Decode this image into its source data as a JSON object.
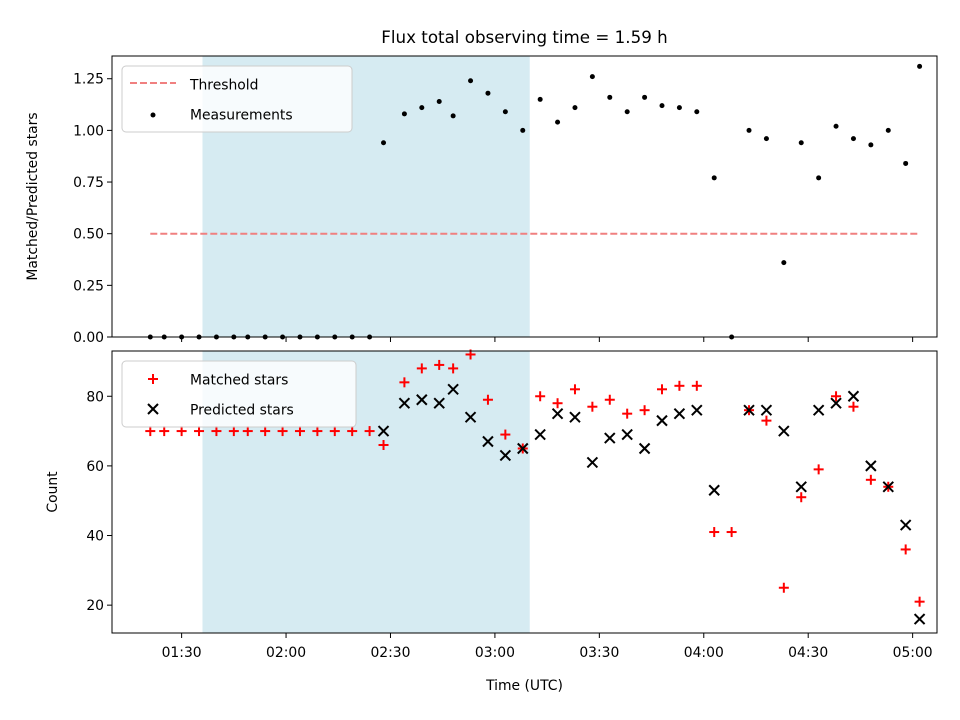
{
  "chart_data": [
    {
      "type": "scatter",
      "title": "Flux total observing time = 1.59 h",
      "xlabel": "",
      "ylabel": "Matched/Predicted stars",
      "ylim": [
        0,
        1.36
      ],
      "yticks": [
        0.0,
        0.25,
        0.5,
        0.75,
        1.0,
        1.25
      ],
      "ytick_labels": [
        "0.00",
        "0.25",
        "0.50",
        "0.75",
        "1.00",
        "1.25"
      ],
      "shaded_span_minutes": [
        96,
        190
      ],
      "legend": [
        "Threshold",
        "Measurements"
      ],
      "legend_position": "top-left",
      "threshold": {
        "name": "Threshold",
        "value": 0.5,
        "x_range": [
          81,
          302
        ],
        "color": "#f08080",
        "style": "dashed"
      },
      "series": [
        {
          "name": "Measurements",
          "color": "#000000",
          "x_minutes": [
            81,
            85,
            90,
            95,
            100,
            105,
            109,
            114,
            119,
            124,
            129,
            134,
            139,
            144,
            148,
            154,
            159,
            164,
            168,
            173,
            178,
            183,
            188,
            193,
            198,
            203,
            208,
            213,
            218,
            223,
            228,
            233,
            238,
            243,
            248,
            253,
            258,
            263,
            268,
            273,
            278,
            283,
            288,
            293,
            298,
            302
          ],
          "values": [
            0.0,
            0.0,
            0.0,
            0.0,
            0.0,
            0.0,
            0.0,
            0.0,
            0.0,
            0.0,
            0.0,
            0.0,
            0.0,
            0.0,
            0.94,
            1.08,
            1.11,
            1.14,
            1.07,
            1.24,
            1.18,
            1.09,
            1.0,
            1.15,
            1.04,
            1.11,
            1.26,
            1.16,
            1.09,
            1.16,
            1.12,
            1.11,
            1.09,
            0.77,
            0.0,
            1.0,
            0.96,
            0.36,
            0.94,
            0.77,
            1.02,
            0.96,
            0.93,
            1.0,
            0.84,
            1.31
          ]
        }
      ]
    },
    {
      "type": "scatter",
      "title": "",
      "xlabel": "Time (UTC)",
      "ylabel": "Count",
      "xlim_minutes": [
        70,
        307
      ],
      "ylim": [
        12,
        93
      ],
      "xticks_minutes": [
        90,
        120,
        150,
        180,
        210,
        240,
        270,
        300
      ],
      "xtick_labels": [
        "01:30",
        "02:00",
        "02:30",
        "03:00",
        "03:30",
        "04:00",
        "04:30",
        "05:00"
      ],
      "yticks": [
        20,
        40,
        60,
        80
      ],
      "ytick_labels": [
        "20",
        "40",
        "60",
        "80"
      ],
      "shaded_span_minutes": [
        96,
        190
      ],
      "legend": [
        "Matched stars",
        "Predicted stars"
      ],
      "legend_position": "top-left",
      "series": [
        {
          "name": "Matched stars",
          "marker": "+",
          "color": "#ff0000",
          "x_minutes": [
            81,
            85,
            90,
            95,
            100,
            105,
            109,
            114,
            119,
            124,
            129,
            134,
            139,
            144,
            148,
            154,
            159,
            164,
            168,
            173,
            178,
            183,
            188,
            193,
            198,
            203,
            208,
            213,
            218,
            223,
            228,
            233,
            238,
            243,
            248,
            253,
            258,
            263,
            268,
            273,
            278,
            283,
            288,
            293,
            298,
            302
          ],
          "values": [
            70,
            70,
            70,
            70,
            70,
            70,
            70,
            70,
            70,
            70,
            70,
            70,
            70,
            70,
            66,
            84,
            88,
            89,
            88,
            92,
            79,
            69,
            65,
            80,
            78,
            82,
            77,
            79,
            75,
            76,
            82,
            83,
            83,
            41,
            41,
            76,
            73,
            25,
            51,
            59,
            80,
            77,
            56,
            54,
            36,
            21
          ]
        },
        {
          "name": "Predicted stars",
          "marker": "x",
          "color": "#000000",
          "x_minutes": [
            148,
            154,
            159,
            164,
            168,
            173,
            178,
            183,
            188,
            193,
            198,
            203,
            208,
            213,
            218,
            223,
            228,
            233,
            238,
            243,
            253,
            258,
            263,
            268,
            273,
            278,
            283,
            288,
            293,
            298,
            302
          ],
          "values": [
            70,
            78,
            79,
            78,
            82,
            74,
            67,
            63,
            65,
            69,
            75,
            74,
            61,
            68,
            69,
            65,
            73,
            75,
            76,
            53,
            76,
            76,
            70,
            54,
            76,
            78,
            80,
            60,
            54,
            43,
            16
          ]
        }
      ]
    }
  ]
}
